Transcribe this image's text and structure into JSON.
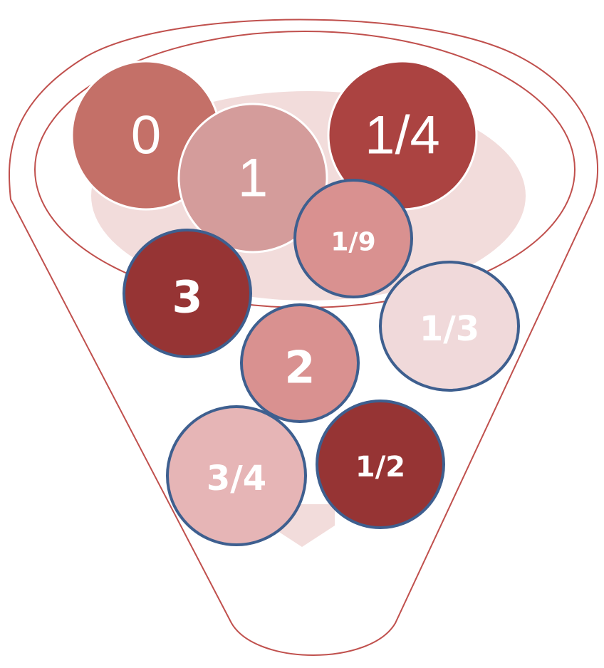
{
  "funnel": {
    "outline_color": "#c0504d",
    "inner_fill_color": "#f2dcdb"
  },
  "balls": [
    {
      "label": "0",
      "fill": "#c47068",
      "stroke": "#ffffff",
      "style": "light"
    },
    {
      "label": "1/4",
      "fill": "#ab4341",
      "stroke": "#ffffff",
      "style": "light"
    },
    {
      "label": "1",
      "fill": "#d49c9b",
      "stroke": "#ffffff",
      "style": "light"
    },
    {
      "label": "1/9",
      "fill": "#d99190",
      "stroke": "#3e5f8f",
      "style": "bold"
    },
    {
      "label": "3",
      "fill": "#963434",
      "stroke": "#3e5f8f",
      "style": "bold"
    },
    {
      "label": "1/3",
      "fill": "#f0d9da",
      "stroke": "#3e5f8f",
      "style": "bold"
    },
    {
      "label": "2",
      "fill": "#d99190",
      "stroke": "#3e5f8f",
      "style": "bold"
    },
    {
      "label": "3/4",
      "fill": "#e6b5b6",
      "stroke": "#3e5f8f",
      "style": "bold"
    },
    {
      "label": "1/2",
      "fill": "#963434",
      "stroke": "#3e5f8f",
      "style": "bold"
    }
  ]
}
